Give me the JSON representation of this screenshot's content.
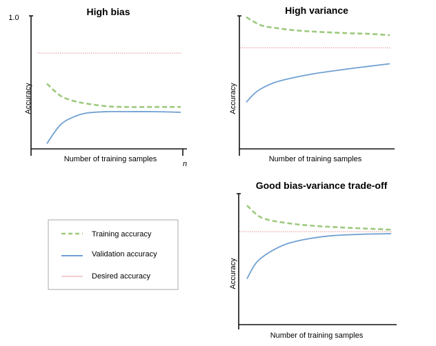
{
  "colors": {
    "training": "#9cc97c",
    "validation": "#6f9fd2",
    "desired": "#e89a9a",
    "axis": "#111111",
    "legend_border": "#aaaaaa"
  },
  "legend": {
    "training_label": "Training accuracy",
    "validation_label": "Validation accuracy",
    "desired_label": "Desired accuracy"
  },
  "chart_data": [
    {
      "type": "line",
      "title": "High bias",
      "xlabel": "Number of training samples",
      "ylabel": "Accuracy",
      "y_tick_label": "1.0",
      "x_end_label": "n",
      "xlim": [
        0,
        1
      ],
      "ylim": [
        0,
        1
      ],
      "series": [
        {
          "name": "Training accuracy",
          "x": [
            0,
            0.1,
            0.2,
            0.3,
            0.45,
            0.6,
            0.8,
            1.0
          ],
          "values": [
            0.49,
            0.4,
            0.36,
            0.34,
            0.32,
            0.315,
            0.315,
            0.315
          ]
        },
        {
          "name": "Validation accuracy",
          "x": [
            0,
            0.1,
            0.2,
            0.3,
            0.45,
            0.6,
            0.8,
            1.0
          ],
          "values": [
            0.04,
            0.18,
            0.24,
            0.27,
            0.28,
            0.28,
            0.28,
            0.275
          ]
        },
        {
          "name": "Desired accuracy",
          "x": [
            0,
            1.0
          ],
          "values": [
            0.72,
            0.72
          ]
        }
      ]
    },
    {
      "type": "line",
      "title": "High variance",
      "xlabel": "Number of training samples",
      "ylabel": "Accuracy",
      "xlim": [
        0,
        1
      ],
      "ylim": [
        0,
        1
      ],
      "series": [
        {
          "name": "Training accuracy",
          "x": [
            0,
            0.1,
            0.2,
            0.35,
            0.5,
            0.7,
            0.85,
            1.0
          ],
          "values": [
            0.99,
            0.93,
            0.91,
            0.89,
            0.88,
            0.87,
            0.865,
            0.855
          ]
        },
        {
          "name": "Validation accuracy",
          "x": [
            0,
            0.05,
            0.1,
            0.2,
            0.35,
            0.5,
            0.7,
            0.85,
            1.0
          ],
          "values": [
            0.35,
            0.41,
            0.45,
            0.5,
            0.54,
            0.57,
            0.6,
            0.62,
            0.64
          ]
        },
        {
          "name": "Desired accuracy",
          "x": [
            0,
            1.0
          ],
          "values": [
            0.76,
            0.76
          ]
        }
      ]
    },
    {
      "type": "line",
      "title": "Good bias-variance trade-off",
      "xlabel": "Number of training samples",
      "ylabel": "Accuracy",
      "xlim": [
        0,
        1
      ],
      "ylim": [
        0,
        1
      ],
      "series": [
        {
          "name": "Training accuracy",
          "x": [
            0,
            0.08,
            0.15,
            0.25,
            0.4,
            0.6,
            0.8,
            1.0
          ],
          "values": [
            0.91,
            0.83,
            0.8,
            0.78,
            0.76,
            0.745,
            0.735,
            0.725
          ]
        },
        {
          "name": "Validation accuracy",
          "x": [
            0,
            0.05,
            0.1,
            0.2,
            0.3,
            0.45,
            0.6,
            0.8,
            1.0
          ],
          "values": [
            0.35,
            0.45,
            0.51,
            0.58,
            0.625,
            0.66,
            0.68,
            0.69,
            0.695
          ]
        },
        {
          "name": "Desired accuracy",
          "x": [
            0,
            1.0
          ],
          "values": [
            0.71,
            0.71
          ]
        }
      ]
    }
  ]
}
